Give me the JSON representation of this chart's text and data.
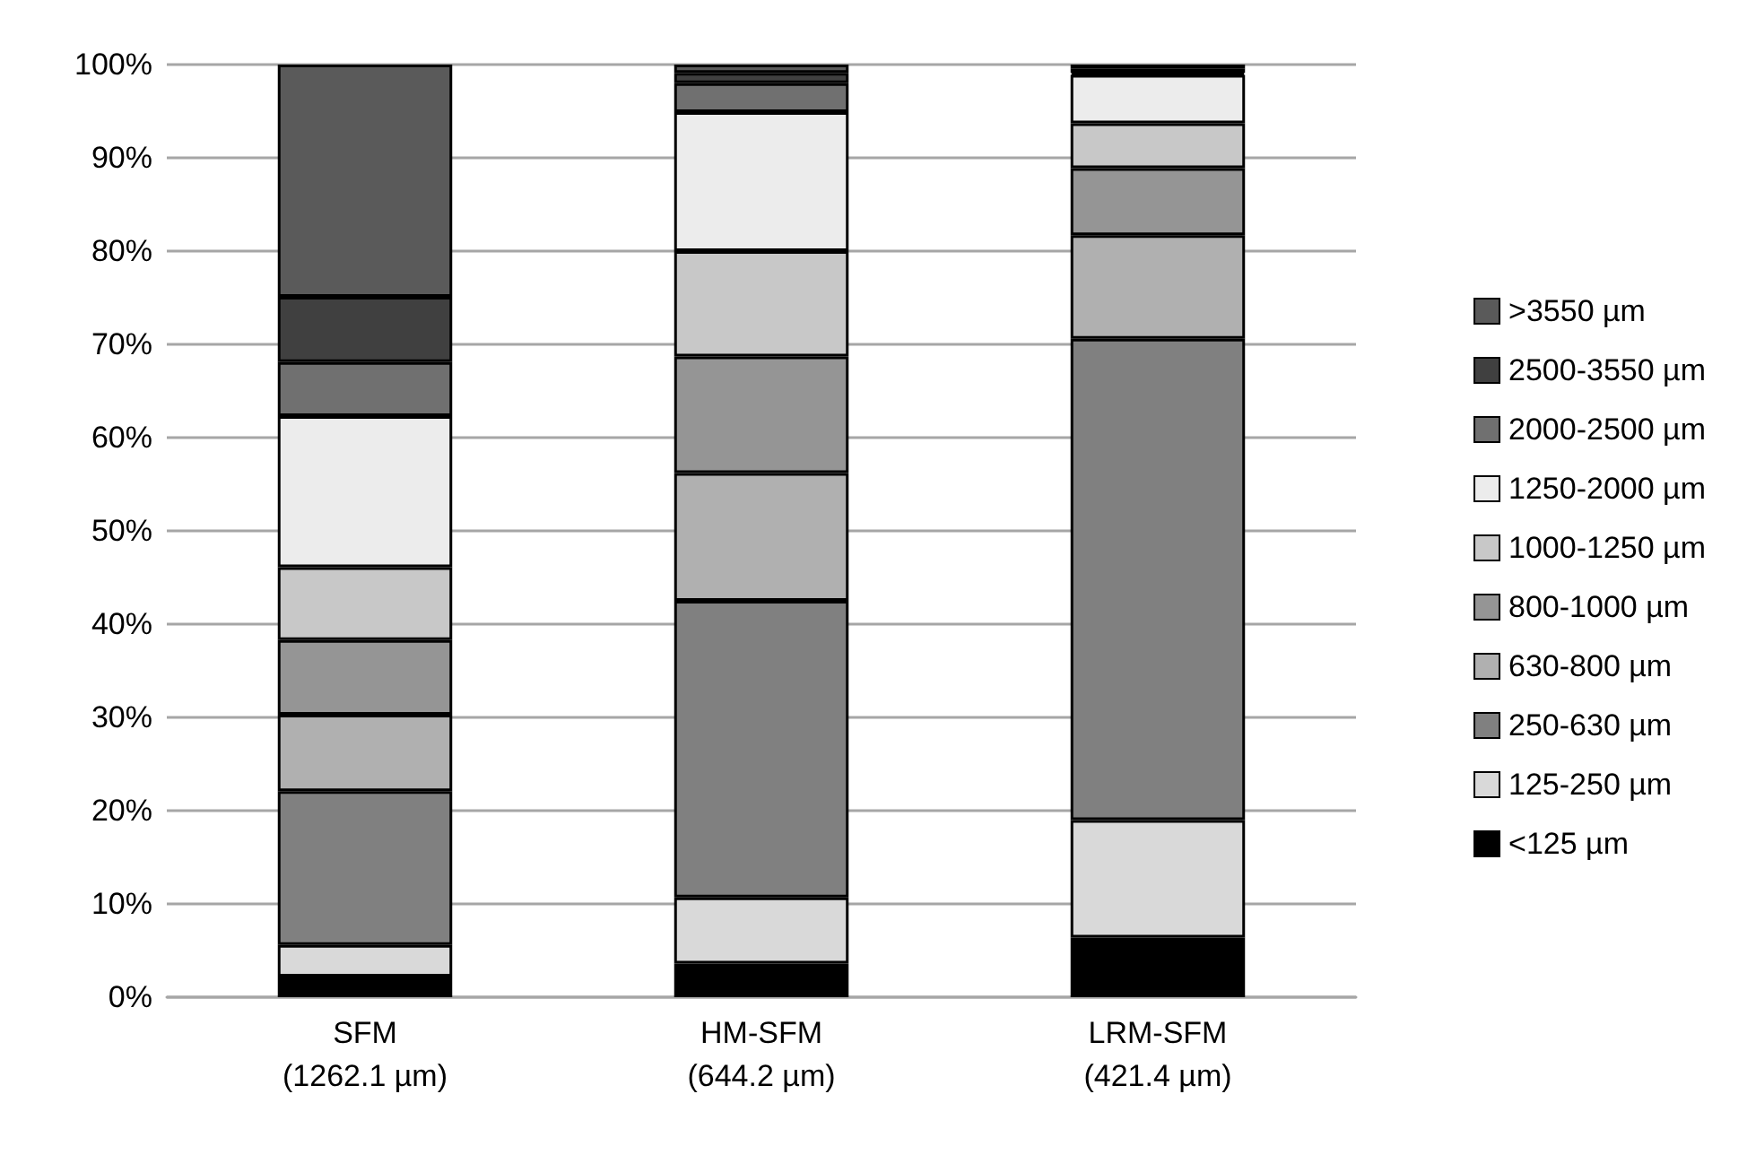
{
  "chart_data": {
    "type": "bar",
    "stacked": true,
    "categories": [
      "SFM\n(1262.1 µm)",
      "HM-SFM\n(644.2 µm)",
      "LRM-SFM\n(421.4 µm)"
    ],
    "series": [
      {
        "name": "<125 µm",
        "color": "#000000",
        "values": [
          2.2,
          3.6,
          6.4
        ]
      },
      {
        "name": "125-250 µm",
        "color": "#d9d9d9",
        "values": [
          3.4,
          7.1,
          12.6
        ]
      },
      {
        "name": "250-630 µm",
        "color": "#808080",
        "values": [
          16.5,
          31.8,
          51.6
        ]
      },
      {
        "name": "630-800 µm",
        "color": "#b0b0b0",
        "values": [
          8.2,
          13.7,
          11.1
        ]
      },
      {
        "name": "800-1000 µm",
        "color": "#959595",
        "values": [
          8.0,
          12.5,
          7.2
        ]
      },
      {
        "name": "1000-1250 µm",
        "color": "#c8c8c8",
        "values": [
          7.8,
          11.3,
          4.8
        ]
      },
      {
        "name": "1250-2000 µm",
        "color": "#ececec",
        "values": [
          16.2,
          14.9,
          5.2
        ]
      },
      {
        "name": "2000-2500 µm",
        "color": "#707070",
        "values": [
          5.8,
          3.1,
          0.2
        ]
      },
      {
        "name": "2500-3550 µm",
        "color": "#404040",
        "values": [
          7.0,
          1.1,
          0.5
        ]
      },
      {
        "name": ">3550 µm",
        "color": "#5a5a5a",
        "values": [
          24.9,
          0.9,
          0.4
        ]
      }
    ],
    "ylim": [
      0,
      100
    ],
    "yticks": [
      {
        "value": 0,
        "label": "0%"
      },
      {
        "value": 10,
        "label": "10%"
      },
      {
        "value": 20,
        "label": "20%"
      },
      {
        "value": 30,
        "label": "30%"
      },
      {
        "value": 40,
        "label": "40%"
      },
      {
        "value": 50,
        "label": "50%"
      },
      {
        "value": 60,
        "label": "60%"
      },
      {
        "value": 70,
        "label": "70%"
      },
      {
        "value": 80,
        "label": "80%"
      },
      {
        "value": 90,
        "label": "90%"
      },
      {
        "value": 100,
        "label": "100%"
      }
    ],
    "grid": "y",
    "legend": "right"
  }
}
